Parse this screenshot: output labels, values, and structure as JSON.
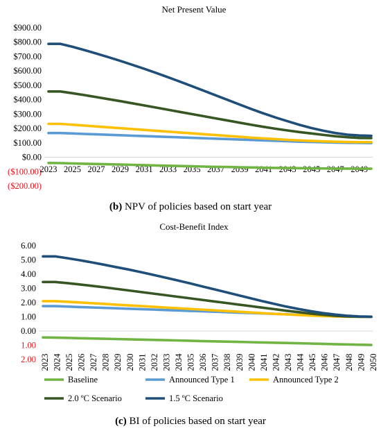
{
  "chart_data": [
    {
      "type": "line",
      "title": "Net Present Value",
      "caption_bold": "(b)",
      "caption_text": " NPV of policies based on start year",
      "x": [
        2023,
        2024,
        2025,
        2026,
        2027,
        2028,
        2029,
        2030,
        2031,
        2032,
        2033,
        2034,
        2035,
        2036,
        2037,
        2038,
        2039,
        2040,
        2041,
        2042,
        2043,
        2044,
        2045,
        2046,
        2047,
        2048,
        2049,
        2050
      ],
      "x_tick_labels": [
        "2023",
        "2025",
        "2027",
        "2029",
        "2031",
        "2033",
        "2035",
        "2037",
        "2039",
        "2041",
        "2043",
        "2045",
        "2047",
        "2049"
      ],
      "y_tick_labels": [
        "$900.00",
        "$800.00",
        "$700.00",
        "$600.00",
        "$500.00",
        "$400.00",
        "$300.00",
        "$200.00",
        "$100.00",
        "$0.00",
        "($100.00)",
        "($200.00)"
      ],
      "y_tick_values": [
        900,
        800,
        700,
        600,
        500,
        400,
        300,
        200,
        100,
        0,
        -100,
        -200
      ],
      "ylim": [
        -200,
        900
      ],
      "negative_label_color": "#e8141c",
      "grid": false,
      "series": [
        {
          "name": "Baseline",
          "color": "#70b443",
          "values": [
            -40,
            -41,
            -43,
            -45,
            -47,
            -49,
            -51,
            -53,
            -55,
            -57,
            -59,
            -61,
            -63,
            -65,
            -67,
            -68,
            -70,
            -71,
            -73,
            -74,
            -75,
            -76,
            -77,
            -78,
            -79,
            -79,
            -80,
            -80
          ]
        },
        {
          "name": "Announced Type 1",
          "color": "#5b9bd5",
          "values": [
            168,
            168,
            165,
            162,
            159,
            156,
            153,
            150,
            147,
            144,
            141,
            138,
            135,
            132,
            129,
            126,
            123,
            120,
            117,
            114,
            111,
            108,
            106,
            104,
            102,
            100,
            99,
            98
          ]
        },
        {
          "name": "Announced Type 2",
          "color": "#ffc000",
          "values": [
            232,
            232,
            226,
            220,
            214,
            208,
            202,
            196,
            190,
            184,
            178,
            172,
            166,
            160,
            154,
            148,
            142,
            136,
            131,
            126,
            121,
            117,
            113,
            110,
            108,
            106,
            105,
            105
          ]
        },
        {
          "name": "2.0 ºC Scenario",
          "color": "#375623",
          "values": [
            457,
            457,
            445,
            432,
            418,
            404,
            390,
            375,
            360,
            345,
            330,
            315,
            300,
            285,
            270,
            255,
            240,
            225,
            211,
            198,
            186,
            175,
            165,
            155,
            146,
            139,
            134,
            133
          ]
        },
        {
          "name": "1.5 ºC Scenario",
          "color": "#1f4e79",
          "values": [
            788,
            788,
            768,
            745,
            721,
            696,
            670,
            643,
            615,
            586,
            556,
            525,
            494,
            462,
            430,
            398,
            366,
            334,
            304,
            276,
            250,
            225,
            203,
            184,
            168,
            157,
            151,
            149
          ]
        }
      ]
    },
    {
      "type": "line",
      "title": "Cost-Benefit Index",
      "caption_bold": "(c)",
      "caption_text": " BI of policies based on start year",
      "x": [
        2023,
        2024,
        2025,
        2026,
        2027,
        2028,
        2029,
        2030,
        2031,
        2032,
        2033,
        2034,
        2035,
        2036,
        2037,
        2038,
        2039,
        2040,
        2041,
        2042,
        2043,
        2044,
        2045,
        2046,
        2047,
        2048,
        2049,
        2050
      ],
      "x_tick_labels": [
        "2023",
        "2024",
        "2025",
        "2026",
        "2027",
        "2028",
        "2029",
        "2030",
        "2031",
        "2032",
        "2033",
        "2034",
        "2035",
        "2036",
        "2037",
        "2038",
        "2039",
        "2040",
        "2041",
        "2042",
        "2043",
        "2044",
        "2045",
        "2046",
        "2047",
        "2048",
        "2049",
        "2050"
      ],
      "y_tick_labels": [
        "6.00",
        "5.00",
        "4.00",
        "3.00",
        "2.00",
        "1.00",
        "0.00",
        "1.00",
        "2.00"
      ],
      "y_tick_values": [
        6,
        5,
        4,
        3,
        2,
        1,
        0,
        -1,
        -2
      ],
      "ylim": [
        -2,
        6
      ],
      "negative_label_color": "#e8141c",
      "grid": false,
      "series": [
        {
          "name": "Baseline",
          "color": "#70b443",
          "values": [
            -0.45,
            -0.46,
            -0.48,
            -0.5,
            -0.52,
            -0.54,
            -0.56,
            -0.58,
            -0.6,
            -0.62,
            -0.64,
            -0.66,
            -0.68,
            -0.7,
            -0.72,
            -0.74,
            -0.76,
            -0.78,
            -0.8,
            -0.82,
            -0.84,
            -0.86,
            -0.88,
            -0.9,
            -0.92,
            -0.94,
            -0.96,
            -0.98
          ]
        },
        {
          "name": "Announced Type 1",
          "color": "#5b9bd5",
          "values": [
            1.75,
            1.75,
            1.72,
            1.69,
            1.66,
            1.63,
            1.6,
            1.57,
            1.54,
            1.51,
            1.48,
            1.45,
            1.42,
            1.39,
            1.36,
            1.33,
            1.3,
            1.27,
            1.24,
            1.21,
            1.18,
            1.15,
            1.12,
            1.09,
            1.06,
            1.03,
            1.01,
            1.0
          ]
        },
        {
          "name": "Announced Type 2",
          "color": "#ffc000",
          "values": [
            2.1,
            2.1,
            2.06,
            2.01,
            1.96,
            1.91,
            1.86,
            1.81,
            1.76,
            1.71,
            1.66,
            1.61,
            1.56,
            1.51,
            1.46,
            1.41,
            1.36,
            1.31,
            1.26,
            1.21,
            1.17,
            1.13,
            1.09,
            1.06,
            1.03,
            1.01,
            1.0,
            1.0
          ]
        },
        {
          "name": "2.0 ºC Scenario",
          "color": "#375623",
          "values": [
            3.45,
            3.45,
            3.37,
            3.28,
            3.18,
            3.08,
            2.97,
            2.86,
            2.75,
            2.64,
            2.53,
            2.42,
            2.31,
            2.2,
            2.09,
            1.98,
            1.87,
            1.76,
            1.65,
            1.54,
            1.43,
            1.33,
            1.23,
            1.15,
            1.08,
            1.03,
            1.01,
            1.0
          ]
        },
        {
          "name": "1.5 ºC Scenario",
          "color": "#1f4e79",
          "values": [
            5.25,
            5.25,
            5.12,
            4.98,
            4.83,
            4.67,
            4.5,
            4.33,
            4.15,
            3.96,
            3.77,
            3.57,
            3.37,
            3.16,
            2.95,
            2.74,
            2.53,
            2.32,
            2.11,
            1.91,
            1.72,
            1.55,
            1.4,
            1.27,
            1.16,
            1.08,
            1.03,
            1.01
          ]
        }
      ],
      "legend_position": "bottom"
    }
  ]
}
